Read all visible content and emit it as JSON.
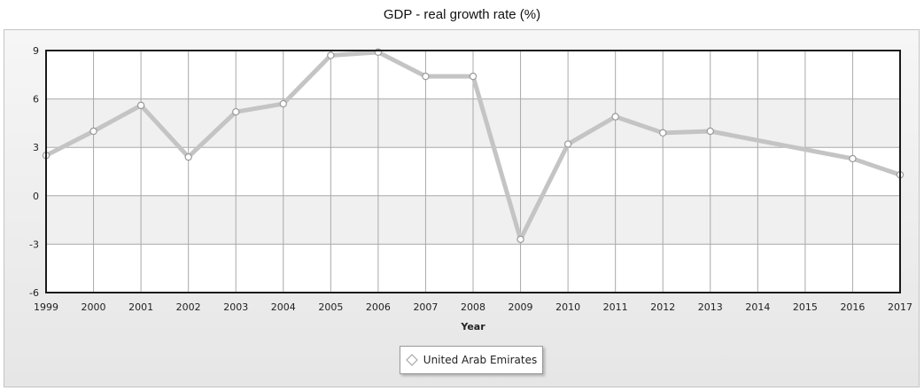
{
  "chart_data": {
    "type": "line",
    "title": "GDP - real growth rate (%)",
    "xlabel": "Year",
    "ylabel": "",
    "categories": [
      "1999",
      "2000",
      "2001",
      "2002",
      "2003",
      "2004",
      "2005",
      "2006",
      "2007",
      "2008",
      "2009",
      "2010",
      "2011",
      "2012",
      "2013",
      "2014",
      "2015",
      "2016",
      "2017"
    ],
    "series": [
      {
        "name": "United Arab Emirates",
        "values": [
          2.5,
          4.0,
          5.6,
          2.4,
          5.2,
          5.7,
          8.7,
          8.9,
          7.4,
          7.4,
          -2.7,
          3.2,
          4.9,
          3.9,
          4.0,
          null,
          null,
          2.3,
          1.3
        ]
      }
    ],
    "ylim": [
      -6,
      9
    ],
    "yticks": [
      9,
      6,
      3,
      0,
      -3,
      -6
    ],
    "grid": true,
    "legend_position": "bottom-center",
    "colors": {
      "line": "#c4c4c4",
      "marker_fill": "#ffffff",
      "marker_stroke": "#9a9a9a",
      "grid": "#a9a9a9",
      "plot_border": "#1a1a1a",
      "band": "#f0f0f0"
    }
  }
}
